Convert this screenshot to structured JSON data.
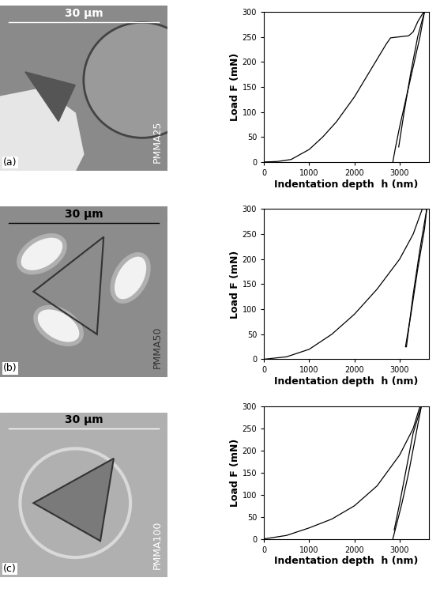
{
  "panels": [
    {
      "label": "(a)",
      "scale_bar": "30 µm",
      "sample": "PMMA25"
    },
    {
      "label": "(b)",
      "scale_bar": "30 µm",
      "sample": "PMMA50"
    },
    {
      "label": "(c)",
      "scale_bar": "30 µm",
      "sample": "PMMA100"
    }
  ],
  "chart_data": [
    {
      "type": "line",
      "x_label": "Indentation depth  h (nm)",
      "y_label": "Load F (mN)",
      "xlim": [
        0,
        3650
      ],
      "xticks": [
        0,
        1000,
        2000,
        3000
      ],
      "ylim": [
        0,
        300
      ],
      "yticks": [
        0,
        50,
        100,
        150,
        200,
        250,
        300
      ],
      "series": [
        {
          "type": "line",
          "color": "#000000",
          "x": [
            0,
            300,
            600,
            1000,
            1300,
            1400,
            1600,
            2000,
            2400,
            2700,
            2800,
            3000,
            3200,
            3300,
            3400,
            3500,
            3550
          ],
          "values": [
            0,
            1,
            5,
            25,
            50,
            60,
            80,
            130,
            190,
            235,
            248,
            250,
            252,
            260,
            280,
            295,
            300
          ]
        },
        {
          "type": "line",
          "color": "#000000",
          "x": [
            3550,
            3450,
            3300,
            3150,
            3000,
            2900,
            2850
          ],
          "values": [
            300,
            250,
            190,
            130,
            70,
            25,
            0
          ]
        },
        {
          "type": "line",
          "color": "#000000",
          "x": [
            2980,
            3100,
            3250,
            3400,
            3550
          ],
          "values": [
            30,
            100,
            180,
            250,
            300
          ]
        }
      ]
    },
    {
      "type": "line",
      "x_label": "Indentation depth  h (nm)",
      "y_label": "Load F (mN)",
      "xlim": [
        0,
        3650
      ],
      "xticks": [
        0,
        1000,
        2000,
        3000
      ],
      "ylim": [
        0,
        300
      ],
      "yticks": [
        0,
        50,
        100,
        150,
        200,
        250,
        300
      ],
      "series": [
        {
          "type": "line",
          "color": "#000000",
          "x": [
            0,
            500,
            1000,
            1500,
            2000,
            2500,
            3000,
            3300,
            3500,
            3600
          ],
          "values": [
            0,
            5,
            20,
            50,
            90,
            140,
            200,
            250,
            300,
            300
          ]
        },
        {
          "type": "line",
          "color": "#000000",
          "x": [
            3600,
            3450,
            3300,
            3200,
            3150
          ],
          "values": [
            300,
            220,
            130,
            60,
            25
          ]
        },
        {
          "type": "line",
          "color": "#000000",
          "x": [
            3130,
            3250,
            3400,
            3550,
            3600
          ],
          "values": [
            25,
            90,
            180,
            260,
            300
          ]
        }
      ]
    },
    {
      "type": "line",
      "x_label": "Indentation depth  h (nm)",
      "y_label": "Load F (mN)",
      "xlim": [
        0,
        3650
      ],
      "xticks": [
        0,
        1000,
        2000,
        3000
      ],
      "ylim": [
        0,
        300
      ],
      "yticks": [
        0,
        50,
        100,
        150,
        200,
        250,
        300
      ],
      "series": [
        {
          "type": "line",
          "color": "#000000",
          "x": [
            0,
            500,
            1000,
            1500,
            2000,
            2500,
            3000,
            3300,
            3450
          ],
          "values": [
            0,
            8,
            25,
            45,
            75,
            120,
            190,
            250,
            300
          ]
        },
        {
          "type": "line",
          "color": "#000000",
          "x": [
            3480,
            3350,
            3200,
            3050,
            2900,
            2850
          ],
          "values": [
            300,
            230,
            150,
            80,
            20,
            0
          ]
        },
        {
          "type": "line",
          "color": "#000000",
          "x": [
            2880,
            3000,
            3150,
            3300,
            3480
          ],
          "values": [
            20,
            80,
            160,
            240,
            300
          ]
        }
      ]
    }
  ]
}
